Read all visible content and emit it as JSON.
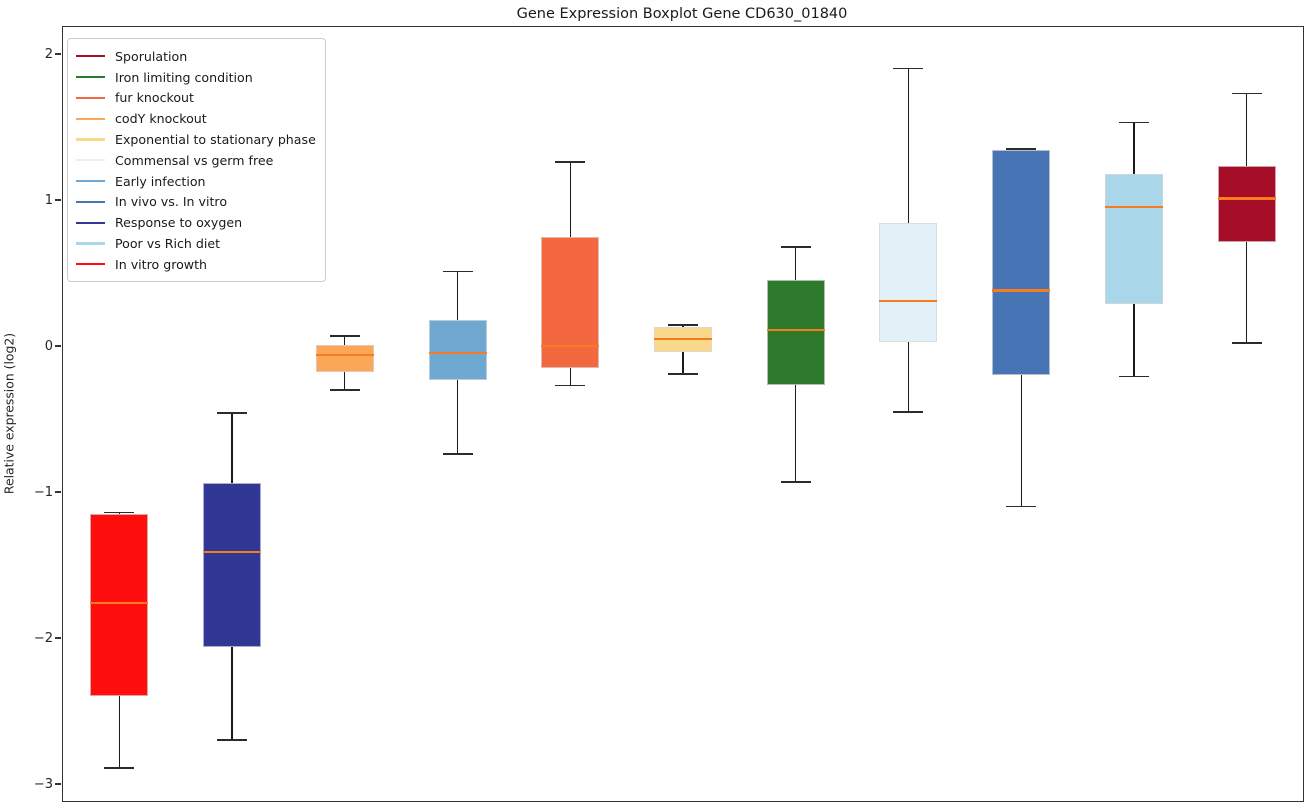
{
  "chart_data": {
    "type": "boxplot",
    "title": "Gene Expression Boxplot Gene CD630_01840",
    "ylabel": "Relative expression (log2)",
    "xlabel": "",
    "ylim": [
      -3.116,
      2.185
    ],
    "grid": false,
    "legend_position": "upper left",
    "yticks": [
      {
        "label": "2",
        "value": 2
      },
      {
        "label": "1",
        "value": 1
      },
      {
        "label": "0",
        "value": 0
      },
      {
        "label": "−1",
        "value": -1
      },
      {
        "label": "−2",
        "value": -2
      },
      {
        "label": "−3",
        "value": -3
      }
    ],
    "median_color": "#f57d1f",
    "whisker_color": "#1a1a1a",
    "legend": [
      {
        "label": "Sporulation",
        "color": "#a50d29"
      },
      {
        "label": "Iron limiting condition",
        "color": "#2d7a2d"
      },
      {
        "label": "fur knockout",
        "color": "#f3683f"
      },
      {
        "label": "codY knockout",
        "color": "#fca658"
      },
      {
        "label": "Exponential to stationary phase",
        "color": "#fbd98b"
      },
      {
        "label": "Commensal vs germ free",
        "color": "#e2f1f8"
      },
      {
        "label": "Early infection",
        "color": "#6fa9d1"
      },
      {
        "label": "In vivo vs. In vitro",
        "color": "#4674b4"
      },
      {
        "label": "Response to oxygen",
        "color": "#303794"
      },
      {
        "label": "Poor vs Rich diet",
        "color": "#a9d6e8"
      },
      {
        "label": "In vitro growth",
        "color": "#ff0e0e"
      }
    ],
    "series": [
      {
        "name": "In vitro growth",
        "color": "#ff0e0e",
        "whisker_low": -2.89,
        "q1": -2.4,
        "median": -1.76,
        "q3": -1.15,
        "whisker_high": -1.14
      },
      {
        "name": "Response to oxygen",
        "color": "#303794",
        "whisker_low": -2.7,
        "q1": -2.06,
        "median": -1.41,
        "q3": -0.94,
        "whisker_high": -0.46
      },
      {
        "name": "codY knockout",
        "color": "#fca658",
        "whisker_low": -0.3,
        "q1": -0.18,
        "median": -0.06,
        "q3": 0.01,
        "whisker_high": 0.07
      },
      {
        "name": "Early infection",
        "color": "#6fa9d1",
        "whisker_low": -0.74,
        "q1": -0.23,
        "median": -0.05,
        "q3": 0.18,
        "whisker_high": 0.51
      },
      {
        "name": "fur knockout",
        "color": "#f3683f",
        "whisker_low": -0.27,
        "q1": -0.15,
        "median": 0.0,
        "q3": 0.75,
        "whisker_high": 1.26
      },
      {
        "name": "Exponential to stationary phase",
        "color": "#fbd98b",
        "whisker_low": -0.19,
        "q1": -0.04,
        "median": 0.05,
        "q3": 0.13,
        "whisker_high": 0.145
      },
      {
        "name": "Iron limiting condition",
        "color": "#2d7a2d",
        "whisker_low": -0.93,
        "q1": -0.27,
        "median": 0.11,
        "q3": 0.45,
        "whisker_high": 0.68
      },
      {
        "name": "Commensal vs germ free",
        "color": "#e2f1f8",
        "whisker_low": -0.45,
        "q1": 0.03,
        "median": 0.31,
        "q3": 0.84,
        "whisker_high": 1.9
      },
      {
        "name": "In vivo vs. In vitro",
        "color": "#4674b4",
        "whisker_low": -1.1,
        "q1": -0.2,
        "median": 0.38,
        "q3": 1.34,
        "whisker_high": 1.35
      },
      {
        "name": "Poor vs Rich diet",
        "color": "#a9d6e8",
        "whisker_low": -0.21,
        "q1": 0.29,
        "median": 0.95,
        "q3": 1.18,
        "whisker_high": 1.53
      },
      {
        "name": "Sporulation",
        "color": "#a50d29",
        "whisker_low": 0.02,
        "q1": 0.71,
        "median": 1.01,
        "q3": 1.23,
        "whisker_high": 1.73
      }
    ]
  }
}
